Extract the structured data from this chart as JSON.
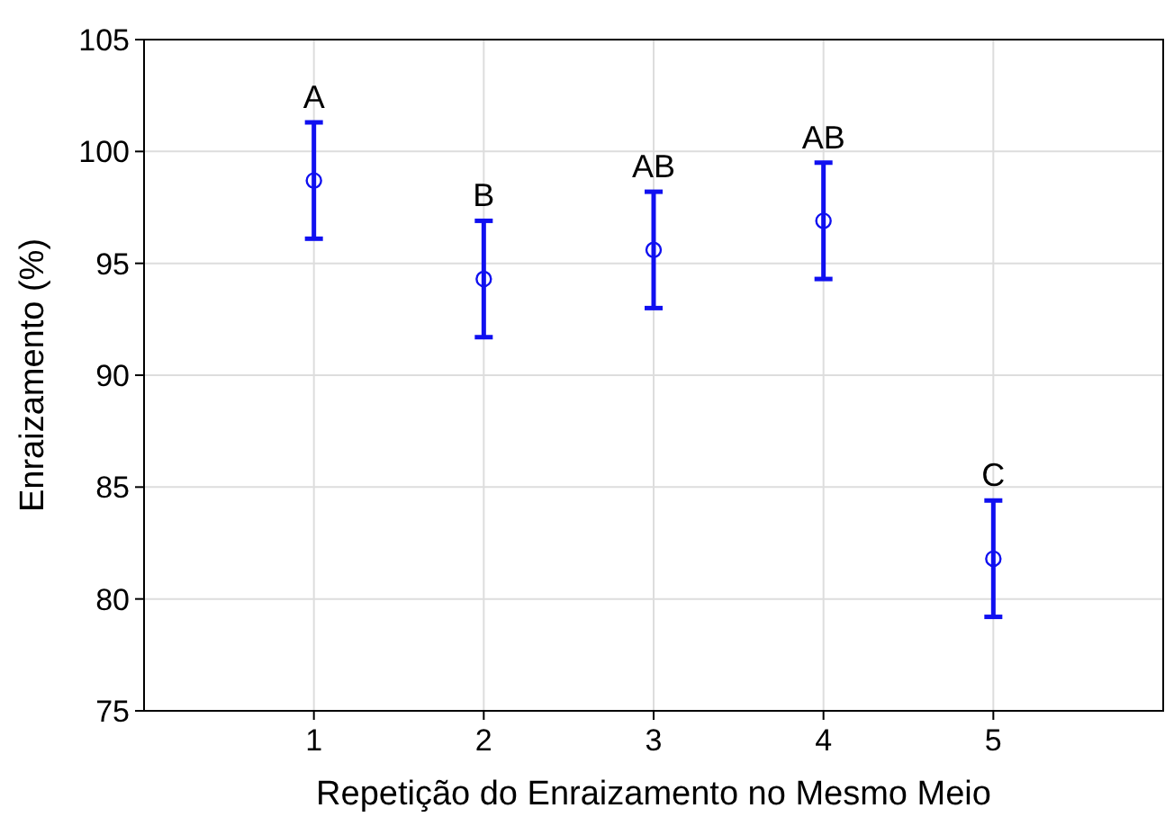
{
  "chart_data": {
    "type": "scatter",
    "xlabel": "Repetição do Enraizamento no Mesmo Meio",
    "ylabel": "Enraizamento (%)",
    "x": [
      1,
      2,
      3,
      4,
      5
    ],
    "series": [
      {
        "color": "#1010f0",
        "values": [
          98.7,
          94.3,
          95.6,
          96.9,
          81.8
        ],
        "errors": [
          2.6,
          2.6,
          2.6,
          2.6,
          2.6
        ]
      }
    ],
    "xlim": [
      0,
      6
    ],
    "xticks": [
      1,
      2,
      3,
      4,
      5
    ],
    "ylim": [
      75,
      105
    ],
    "yticks": [
      75,
      80,
      85,
      90,
      95,
      100,
      105
    ],
    "grid": true,
    "marker": "circle",
    "annotations": [
      {
        "text": "A",
        "x": 1,
        "y": 101.3
      },
      {
        "text": "B",
        "x": 2,
        "y": 96.9
      },
      {
        "text": "AB",
        "x": 3,
        "y": 98.2
      },
      {
        "text": "AB",
        "x": 4,
        "y": 99.5
      },
      {
        "text": "C",
        "x": 5,
        "y": 84.4
      }
    ]
  }
}
